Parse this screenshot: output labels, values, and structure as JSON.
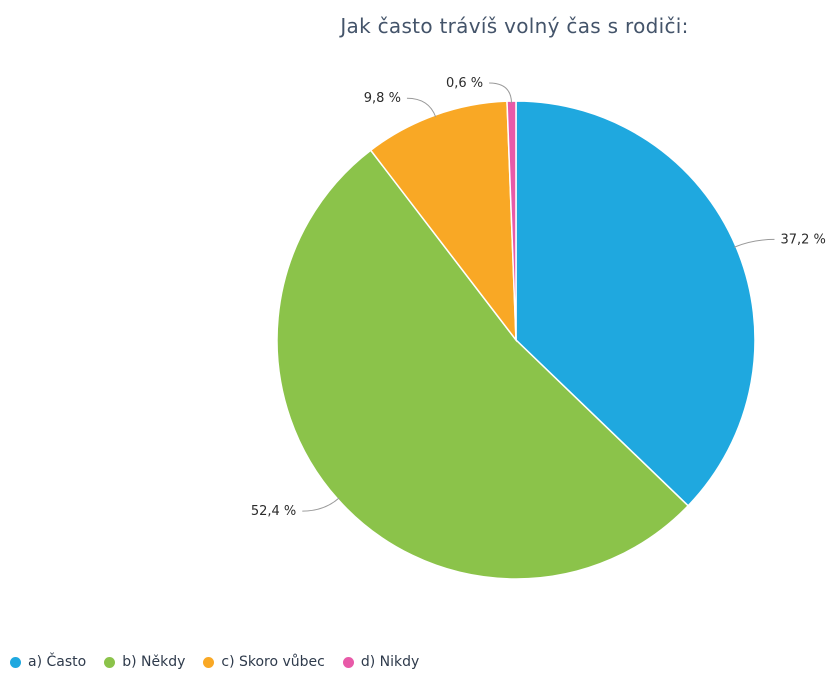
{
  "chart_data": {
    "type": "pie",
    "title": "Jak často trávíš volný čas s rodiči:",
    "categories": [
      "a) Často",
      "b) Někdy",
      "c) Skoro vůbec",
      "d) Nikdy"
    ],
    "values": [
      37.2,
      52.4,
      9.8,
      0.6
    ],
    "value_labels": [
      "37,2 %",
      "52,4 %",
      "9,8 %",
      "0,6 %"
    ],
    "colors": [
      "#1fa8df",
      "#8bc34a",
      "#f9a825",
      "#e85aa8"
    ],
    "legend_position": "bottom-left",
    "start_angle": "top, clockwise"
  }
}
